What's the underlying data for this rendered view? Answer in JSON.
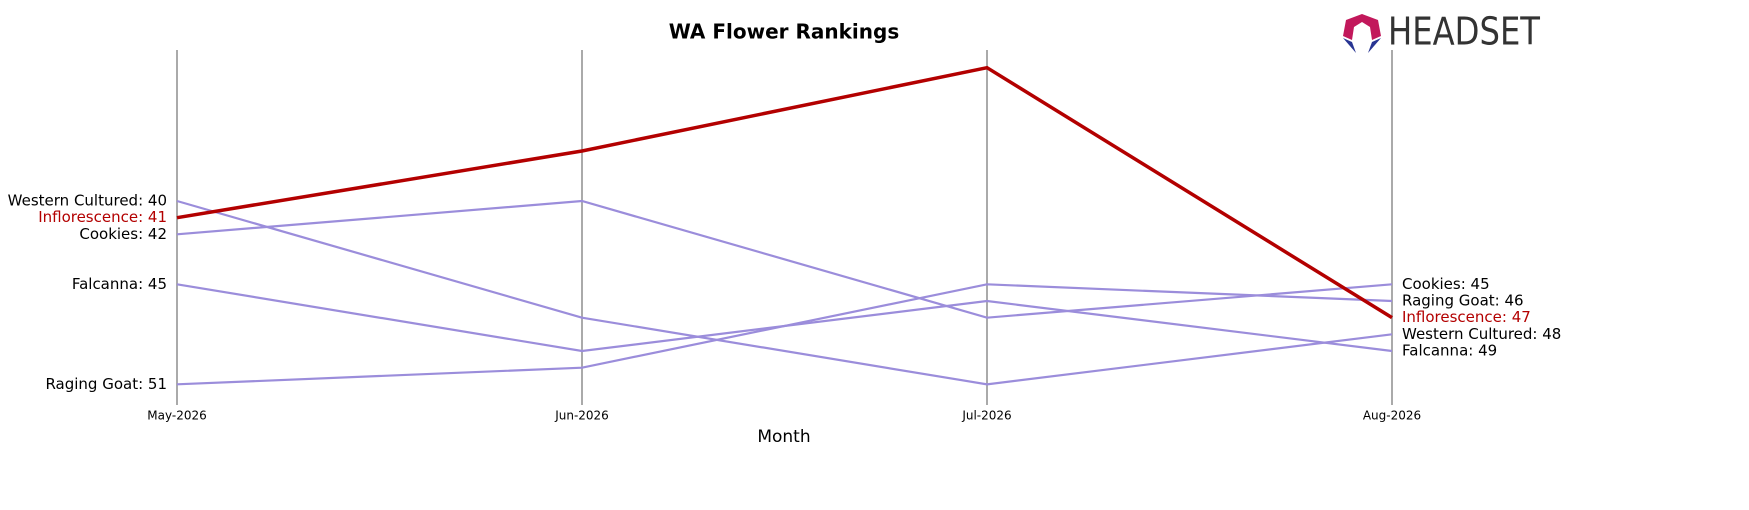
{
  "chart_data": {
    "type": "line",
    "title": "WA Flower Rankings",
    "x_label": "Month",
    "logo": "HEADSET",
    "categories": [
      "May-2026",
      "Jun-2026",
      "Jul-2026",
      "Aug-2026"
    ],
    "ylim": [
      31,
      52
    ],
    "y_inverted": true,
    "series": [
      {
        "name": "Western Cultured",
        "color": "#9b8ddb",
        "label_color": "#000000",
        "values": [
          40,
          47,
          51,
          48
        ],
        "value_labels": [
          "Western Cultured: 40",
          null,
          null,
          "Western Cultured: 48"
        ]
      },
      {
        "name": "Cookies",
        "color": "#9b8ddb",
        "label_color": "#000000",
        "values": [
          42,
          40,
          47,
          45
        ],
        "value_labels": [
          "Cookies: 42",
          null,
          null,
          "Cookies: 45"
        ]
      },
      {
        "name": "Falcanna",
        "color": "#9b8ddb",
        "label_color": "#000000",
        "values": [
          45,
          49,
          46,
          49
        ],
        "value_labels": [
          "Falcanna: 45",
          null,
          null,
          "Falcanna: 49"
        ]
      },
      {
        "name": "Raging Goat",
        "color": "#9b8ddb",
        "label_color": "#000000",
        "values": [
          51,
          50,
          45,
          46
        ],
        "value_labels": [
          "Raging Goat: 51",
          null,
          null,
          "Raging Goat: 46"
        ]
      },
      {
        "name": "Inflorescence",
        "color": "#b30000",
        "label_color": "#b30000",
        "width": 3.5,
        "values": [
          41,
          37,
          32,
          47
        ],
        "value_labels": [
          "Inflorescence: 41",
          null,
          null,
          "Inflorescence: 47"
        ]
      }
    ]
  }
}
